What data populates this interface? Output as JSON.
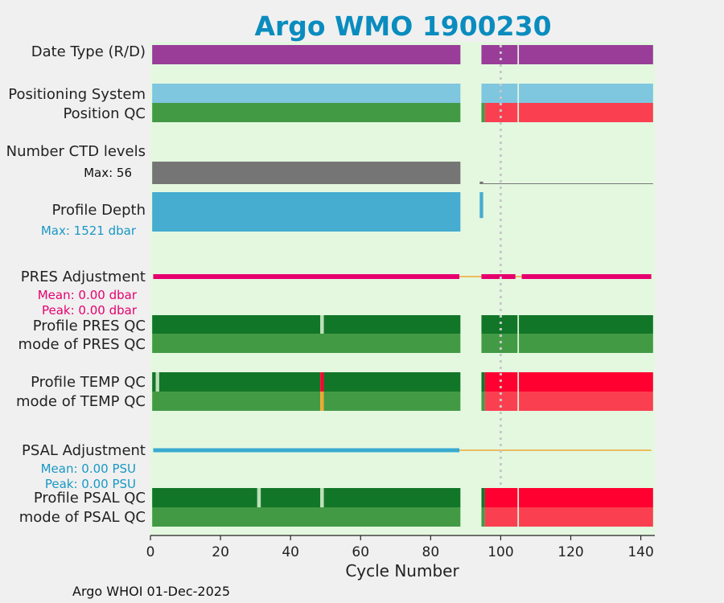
{
  "colors": {
    "title": "#0a8cbe",
    "plot_bg": "#e4f8e0",
    "fig_bg": "#f0f0f0",
    "purple": "#993d99",
    "lightblue": "#7fc6df",
    "green_light": "#439a45",
    "green_dark": "#127628",
    "red": "#fa4050",
    "red_dark": "#ff0030",
    "gray": "#757575",
    "depth_blue": "#46acd0",
    "magenta": "#e6006e",
    "orange": "#f0a830",
    "psal_blue": "#3aaad0",
    "pale": "#bde0b8",
    "stat_dark": "#111111",
    "stat_blue": "#1898c4",
    "stat_magenta": "#e6006e"
  },
  "chart_data": {
    "type": "bar",
    "title": "Argo WMO 1900230",
    "xlabel": "Cycle Number",
    "xlim": [
      0,
      144
    ],
    "xticks": [
      0,
      20,
      40,
      60,
      80,
      100,
      120,
      140
    ],
    "vline_x": 100,
    "labels": {
      "date_type": "Date Type (R/D)",
      "pos_system": "Positioning System",
      "pos_qc": "Position QC",
      "ctd_levels": "Number CTD levels",
      "profile_depth": "Profile Depth",
      "pres_adj": "PRES Adjustment",
      "prof_pres_qc": "Profile PRES QC",
      "mode_pres_qc": "mode of PRES QC",
      "prof_temp_qc": "Profile TEMP QC",
      "mode_temp_qc": "mode of TEMP QC",
      "psal_adj": "PSAL Adjustment",
      "prof_psal_qc": "Profile PSAL QC",
      "mode_psal_qc": "mode of PSAL QC"
    },
    "stats": {
      "ctd_max": "Max: 56",
      "depth_max": "Max: 1521 dbar",
      "pres_mean": "Mean: 0.00 dbar",
      "pres_peak": "Peak: 0.00 dbar",
      "psal_mean": "Mean: 0.00 PSU",
      "psal_peak": "Peak: 0.00 PSU"
    },
    "rows": [
      {
        "id": "date-type",
        "segments": [
          [
            0.5,
            88.5,
            "purple"
          ],
          [
            94.5,
            104.8,
            "purple"
          ],
          [
            105.2,
            143.5,
            "purple"
          ]
        ]
      },
      {
        "id": "positioning-system",
        "segments": [
          [
            0.5,
            88.5,
            "lightblue"
          ],
          [
            94.5,
            104.8,
            "lightblue"
          ],
          [
            105.2,
            143.5,
            "lightblue"
          ]
        ]
      },
      {
        "id": "position-qc",
        "segments": [
          [
            0.5,
            88.5,
            "green_light"
          ],
          [
            94.5,
            95.5,
            "green_light"
          ],
          [
            95.5,
            104.8,
            "red"
          ],
          [
            105.2,
            143.5,
            "red"
          ]
        ]
      },
      {
        "id": "profile-pres-qc",
        "segments": [
          [
            0.5,
            48.5,
            "green_dark"
          ],
          [
            48.5,
            49.5,
            "pale"
          ],
          [
            49.5,
            88.5,
            "green_dark"
          ],
          [
            94.5,
            104.8,
            "green_dark"
          ],
          [
            105.2,
            143.5,
            "green_dark"
          ]
        ]
      },
      {
        "id": "mode-pres-qc",
        "segments": [
          [
            0.5,
            88.5,
            "green_light"
          ],
          [
            94.5,
            104.8,
            "green_light"
          ],
          [
            105.2,
            143.5,
            "green_light"
          ]
        ]
      },
      {
        "id": "profile-temp-qc",
        "segments": [
          [
            0.5,
            1.5,
            "green_dark"
          ],
          [
            1.5,
            2.5,
            "pale"
          ],
          [
            2.5,
            48.5,
            "green_dark"
          ],
          [
            48.5,
            49.5,
            "red_dark"
          ],
          [
            49.5,
            88.5,
            "green_dark"
          ],
          [
            94.5,
            95.5,
            "green_dark"
          ],
          [
            95.5,
            104.8,
            "red_dark"
          ],
          [
            105.2,
            143.5,
            "red_dark"
          ]
        ]
      },
      {
        "id": "mode-temp-qc",
        "segments": [
          [
            0.5,
            48.5,
            "green_light"
          ],
          [
            48.5,
            49.5,
            "orange"
          ],
          [
            49.5,
            88.5,
            "green_light"
          ],
          [
            94.5,
            95.5,
            "green_light"
          ],
          [
            95.5,
            104.8,
            "red"
          ],
          [
            105.2,
            143.5,
            "red"
          ]
        ]
      },
      {
        "id": "profile-psal-qc",
        "segments": [
          [
            0.5,
            30.5,
            "green_dark"
          ],
          [
            30.5,
            31.5,
            "pale"
          ],
          [
            31.5,
            48.5,
            "green_dark"
          ],
          [
            48.5,
            49.5,
            "pale"
          ],
          [
            49.5,
            88.5,
            "green_dark"
          ],
          [
            94.5,
            95.5,
            "green_dark"
          ],
          [
            95.5,
            104.8,
            "red_dark"
          ],
          [
            105.2,
            143.5,
            "red_dark"
          ]
        ]
      },
      {
        "id": "mode-psal-qc",
        "segments": [
          [
            0.5,
            88.5,
            "green_light"
          ],
          [
            94.5,
            95.5,
            "green_light"
          ],
          [
            95.5,
            104.8,
            "red"
          ],
          [
            105.2,
            143.5,
            "red"
          ]
        ]
      }
    ],
    "ctd_levels": {
      "max": 56,
      "segments": [
        [
          0.5,
          88.5,
          54
        ],
        [
          94,
          95,
          6
        ],
        [
          95,
          143.5,
          1
        ]
      ]
    },
    "profile_depth": {
      "max_dbar": 1521,
      "segments": [
        [
          0.5,
          88.5,
          1521
        ],
        [
          94,
          95,
          1000
        ]
      ]
    },
    "pres_adjustment": {
      "bars": [
        [
          0.8,
          88.2
        ],
        [
          94.5,
          104.2
        ],
        [
          106,
          143
        ]
      ],
      "zero_line": [
        [
          88.2,
          94.5
        ],
        [
          104.2,
          106
        ]
      ]
    },
    "psal_adjustment": {
      "bars": [
        [
          0.8,
          88.2
        ]
      ],
      "zero_line": [
        [
          88.2,
          143
        ]
      ]
    }
  },
  "footer": "Argo WHOI 01-Dec-2025"
}
